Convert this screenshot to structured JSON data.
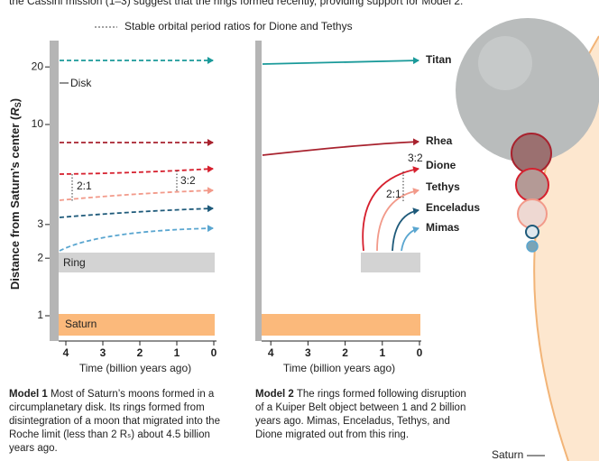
{
  "intro": "the Cassini mission (1–3) suggest that the rings formed recently, providing support for Model 2.",
  "legend": "Stable orbital period ratios for Dione and Tethys",
  "y_label": [
    "Distance from Saturn’s center (",
    "R",
    "S",
    ")"
  ],
  "yticks": [
    1,
    2,
    3,
    10,
    20
  ],
  "panels": [
    {
      "xticks": [
        4,
        3,
        2,
        1,
        0
      ],
      "x_label": "Time (billion years ago)",
      "disk": "Disk",
      "ring": "Ring",
      "saturn": "Saturn",
      "ratios": [
        "2:1",
        "3:2"
      ],
      "caption_title": "Model 1",
      "caption": "Most of Saturn’s moons formed in a circumplanetary disk. Its rings formed from disintegration of a moon that migrated into the Roche limit (less than 2 Rₛ) about 4.5 billion years ago."
    },
    {
      "xticks": [
        4,
        3,
        2,
        1,
        0
      ],
      "x_label": "Time (billion years ago)",
      "ratios": [
        "3:2",
        "2:1"
      ],
      "moons": [
        "Titan",
        "Rhea",
        "Dione",
        "Tethys",
        "Enceladus",
        "Mimas"
      ],
      "caption_title": "Model 2",
      "caption": "The rings formed following disruption of a Kuiper Belt object between 1 and 2 billion years ago. Mimas, Enceladus, Tethys, and Dione migrated out from this ring."
    }
  ],
  "planet_label": "Saturn"
}
